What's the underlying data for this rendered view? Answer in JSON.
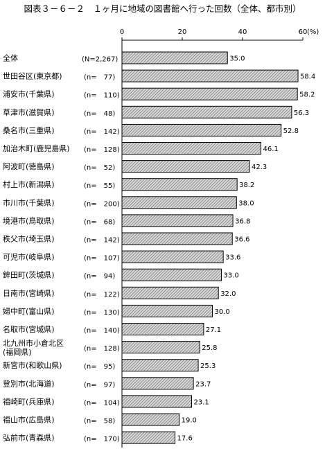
{
  "title": "図表３－６－２　１ヶ月に地域の図書館へ行った回数（全体、都市別）",
  "chart_data": {
    "type": "bar",
    "orientation": "horizontal",
    "title": "図表３－６－２　１ヶ月に地域の図書館へ行った回数（全体、都市別）",
    "unit": "(%)",
    "xlim": [
      0,
      60
    ],
    "ticks": [
      "0",
      "20",
      "40",
      "60"
    ],
    "grid": false,
    "bar_fill": "hatched-gray",
    "categories": [
      "全体",
      "世田谷区(東京都)",
      "浦安市(千葉県)",
      "草津市(滋賀県)",
      "桑名市(三重県)",
      "加治木町(鹿児島県)",
      "阿波町(徳島県)",
      "村上市(新潟県)",
      "市川市(千葉県)",
      "境港市(鳥取県)",
      "秩父市(埼玉県)",
      "可児市(岐阜県)",
      "鉾田町(茨城県)",
      "日南市(宮崎県)",
      "婦中町(富山県)",
      "名取市(宮城県)",
      "北九州市小倉北区(福岡県)",
      "新宮市(和歌山県)",
      "登別市(北海道)",
      "福崎町(兵庫県)",
      "福山市(広島県)",
      "弘前市(青森県)"
    ],
    "n_labels": [
      "(N=2,267)",
      "(n=　77)",
      "(n=　110)",
      "(n=　48)",
      "(n=　142)",
      "(n=　128)",
      "(n=　52)",
      "(n=　55)",
      "(n=　200)",
      "(n=　68)",
      "(n=　142)",
      "(n=　107)",
      "(n=　94)",
      "(n=　122)",
      "(n=　130)",
      "(n=　140)",
      "(n=　128)",
      "(n=　95)",
      "(n=　97)",
      "(n=　104)",
      "(n=　58)",
      "(n=　170)"
    ],
    "values": [
      35.0,
      58.4,
      58.2,
      56.3,
      52.8,
      46.1,
      42.3,
      38.2,
      38.0,
      36.8,
      36.6,
      33.6,
      33.0,
      32.0,
      30.0,
      27.1,
      25.8,
      25.3,
      23.7,
      23.1,
      19.0,
      17.6
    ],
    "value_labels": [
      "35.0",
      "58.4",
      "58.2",
      "56.3",
      "52.8",
      "46.1",
      "42.3",
      "38.2",
      "38.0",
      "36.8",
      "36.6",
      "33.6",
      "33.0",
      "32.0",
      "30.0",
      "27.1",
      "25.8",
      "25.3",
      "23.7",
      "23.1",
      "19.0",
      "17.6"
    ]
  }
}
